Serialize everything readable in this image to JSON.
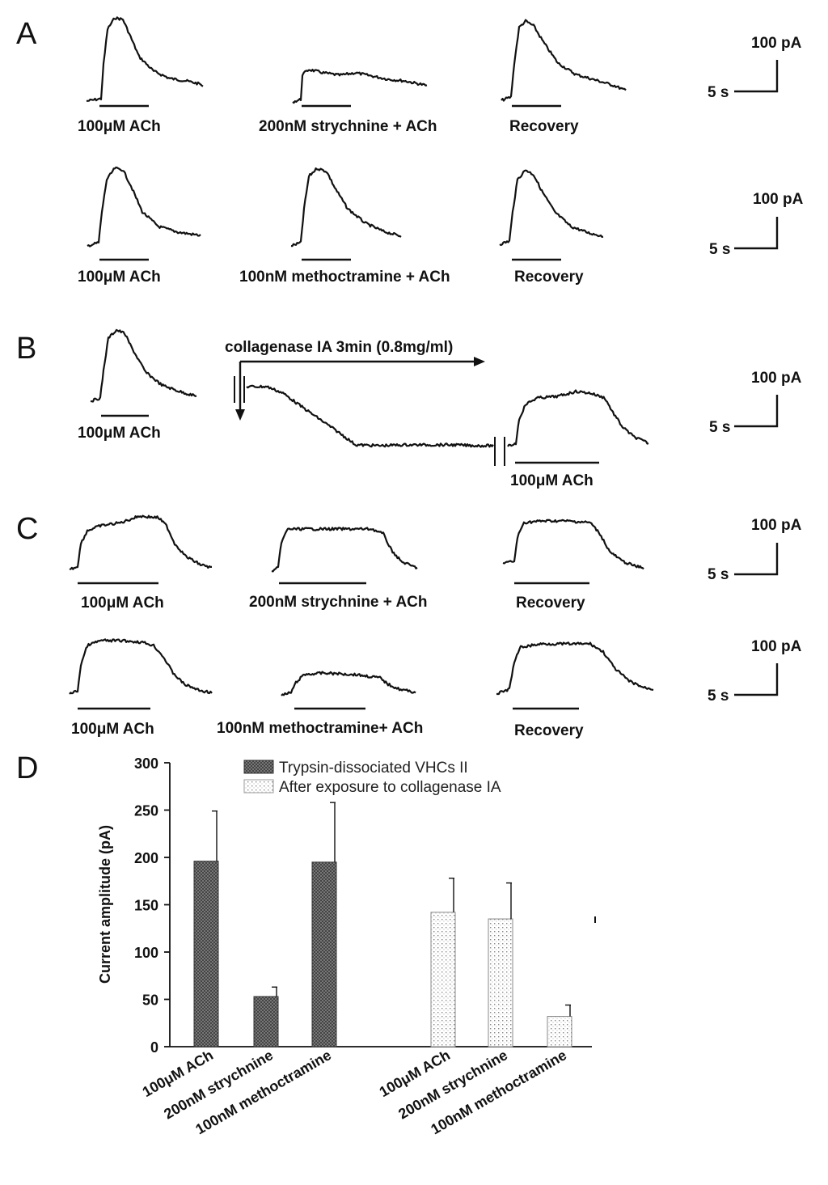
{
  "panel_letters": [
    "A",
    "B",
    "C",
    "D"
  ],
  "panel_a": {
    "row1": {
      "labels": [
        "100μM ACh",
        "200nM strychnine + ACh",
        "Recovery"
      ],
      "scale": {
        "current": "100 pA",
        "time": "5 s"
      }
    },
    "row2": {
      "labels": [
        "100μM ACh",
        "100nM methoctramine + ACh",
        "Recovery"
      ],
      "scale": {
        "current": "100 pA",
        "time": "5 s"
      }
    }
  },
  "panel_b": {
    "labels": [
      "100μM ACh",
      "100μM ACh"
    ],
    "treatment": "collagenase IA  3min (0.8mg/ml)",
    "scale": {
      "current": "100 pA",
      "time": "5 s"
    }
  },
  "panel_c": {
    "row1": {
      "labels": [
        "100μM ACh",
        "200nM strychnine + ACh",
        "Recovery"
      ],
      "scale": {
        "current": "100 pA",
        "time": "5 s"
      }
    },
    "row2": {
      "labels": [
        "100μM ACh",
        "100nM methoctramine+ ACh",
        "Recovery"
      ],
      "scale": {
        "current": "100 pA",
        "time": "5 s"
      }
    }
  },
  "chart_data": {
    "type": "bar",
    "title": "",
    "ylabel": "Current amplitude (pA)",
    "xlabel": "",
    "ylim": [
      0,
      300
    ],
    "yticks": [
      0,
      50,
      100,
      150,
      200,
      250,
      300
    ],
    "categories": [
      "100μM ACh",
      "200nM strychnine",
      "100nM methoctramine"
    ],
    "series": [
      {
        "name": "Trypsin-dissociated VHCs II",
        "values": [
          196,
          53,
          195
        ],
        "errors": [
          53,
          10,
          63
        ],
        "color": "#555555",
        "pattern": "dense-dots"
      },
      {
        "name": "After exposure to collagenase IA",
        "values": [
          142,
          135,
          32
        ],
        "errors": [
          36,
          38,
          12
        ],
        "color": "#ffffff",
        "pattern": "sparse-dots"
      }
    ],
    "legend_position": "top"
  }
}
